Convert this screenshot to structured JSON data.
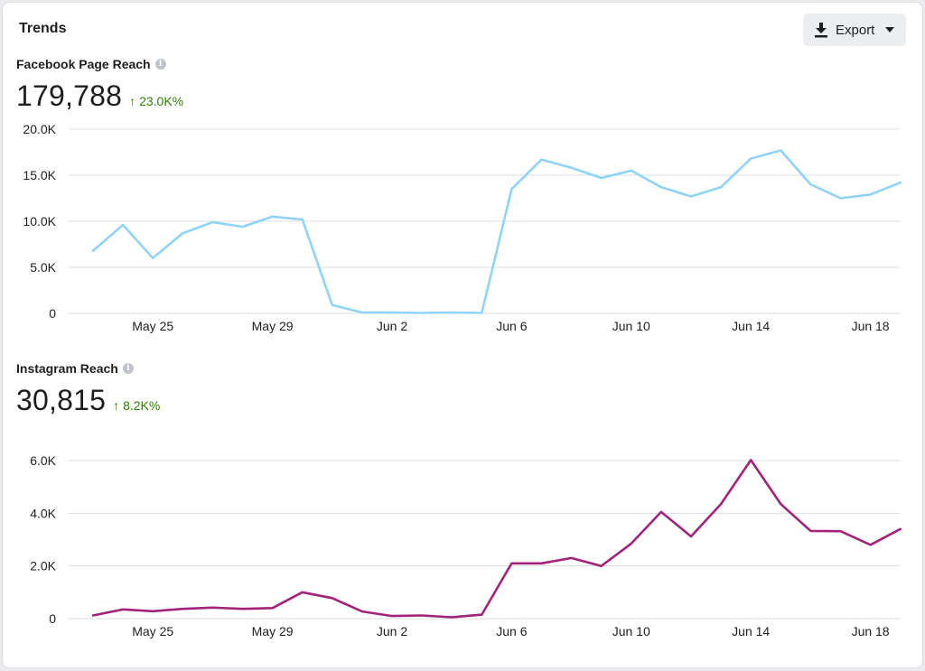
{
  "header": {
    "title": "Trends",
    "export_label": "Export"
  },
  "metrics": [
    {
      "label": "Facebook Page Reach",
      "value": "179,788",
      "delta": "23.0K%"
    },
    {
      "label": "Instagram Reach",
      "value": "30,815",
      "delta": "8.2K%"
    }
  ],
  "colors": {
    "facebook": "#8fd3f8",
    "instagram": "#a3237a",
    "positive": "#2f8200"
  },
  "chart_data": [
    {
      "type": "line",
      "series": [
        {
          "name": "Facebook Page Reach",
          "color": "#8fd3f8",
          "values": [
            6800,
            9600,
            6000,
            8700,
            9900,
            9400,
            10500,
            10200,
            900,
            100,
            100,
            50,
            100,
            50,
            13500,
            16700,
            15800,
            14700,
            15500,
            13700,
            12700,
            13700,
            16800,
            17700,
            14000,
            12500,
            12900,
            14200
          ]
        }
      ],
      "x_tick_labels": [
        "May 25",
        "May 29",
        "Jun 2",
        "Jun 6",
        "Jun 10",
        "Jun 14",
        "Jun 18"
      ],
      "x_tick_index": [
        2,
        6,
        10,
        14,
        18,
        22,
        26
      ],
      "y_ticks": [
        0,
        5000,
        10000,
        15000,
        20000
      ],
      "y_tick_labels": [
        "0",
        "5.0K",
        "10.0K",
        "15.0K",
        "20.0K"
      ],
      "ylim": [
        0,
        20000
      ]
    },
    {
      "type": "line",
      "series": [
        {
          "name": "Instagram Reach",
          "color": "#a3237a",
          "values": [
            120,
            350,
            280,
            370,
            420,
            370,
            400,
            1000,
            780,
            270,
            100,
            120,
            50,
            150,
            2100,
            2100,
            2300,
            2000,
            2850,
            4050,
            3120,
            4350,
            6020,
            4350,
            3330,
            3320,
            2800,
            3400
          ]
        }
      ],
      "x_tick_labels": [
        "May 25",
        "May 29",
        "Jun 2",
        "Jun 6",
        "Jun 10",
        "Jun 14",
        "Jun 18"
      ],
      "x_tick_index": [
        2,
        6,
        10,
        14,
        18,
        22,
        26
      ],
      "y_ticks": [
        0,
        2000,
        4000,
        6000
      ],
      "y_tick_labels": [
        "0",
        "2.0K",
        "4.0K",
        "6.0K"
      ],
      "ylim": [
        0,
        6000
      ]
    }
  ]
}
